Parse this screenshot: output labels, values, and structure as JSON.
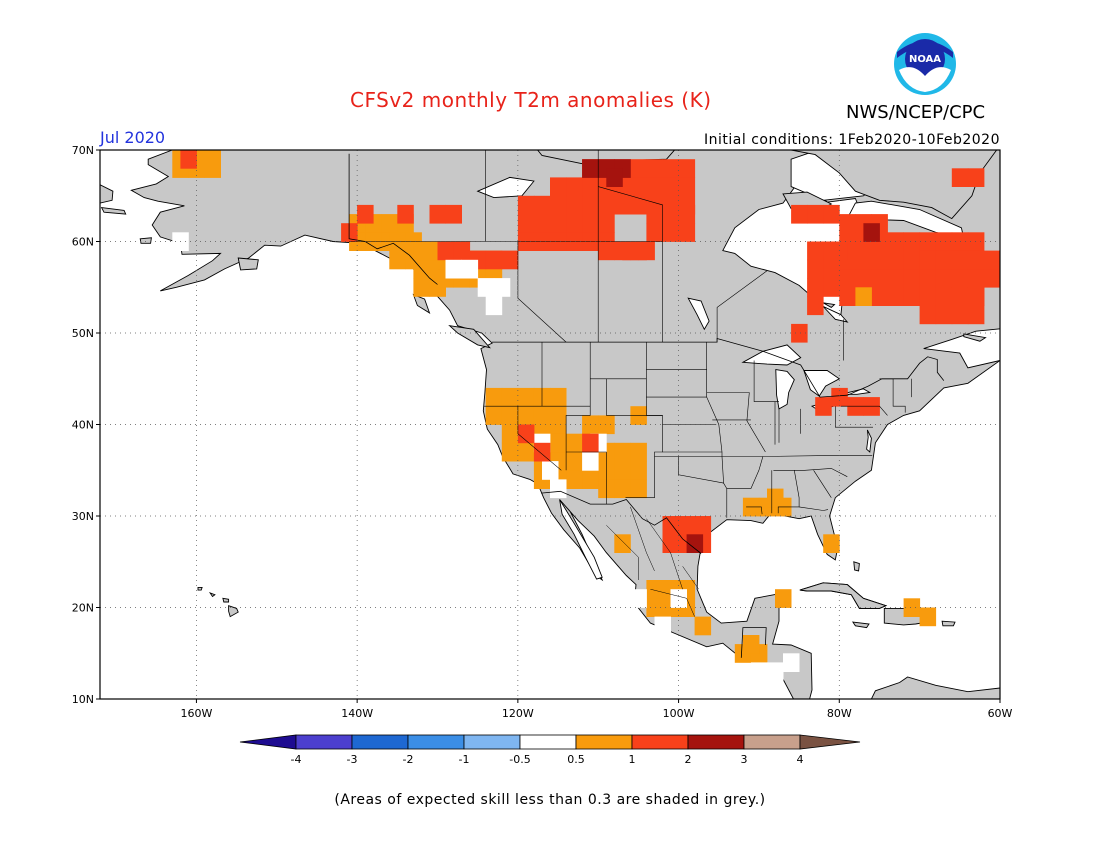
{
  "title": "CFSv2 monthly T2m anomalies (K)",
  "agency": "NWS/NCEP/CPC",
  "logo_text": "NOAA",
  "valid_period": "Jul 2020",
  "initial_conditions": "Initial conditions: 1Feb2020-10Feb2020",
  "footnote": "(Areas of expected skill less than 0.3 are shaded in grey.)",
  "map": {
    "lon_range": [
      -172,
      -60
    ],
    "lat_range": [
      10,
      70
    ],
    "lat_labels": [
      "10N",
      "20N",
      "30N",
      "40N",
      "50N",
      "60N",
      "70N"
    ],
    "lon_labels": [
      "160W",
      "140W",
      "120W",
      "100W",
      "80W",
      "60W"
    ],
    "land_color": "#c8c8c8"
  },
  "colorbar": {
    "tick_labels": [
      "-4",
      "-3",
      "-2",
      "-1",
      "-0.5",
      "0.5",
      "1",
      "2",
      "3",
      "4"
    ],
    "colors": [
      "#1e0c91",
      "#4c3fce",
      "#1e68d2",
      "#3b8ee6",
      "#7fb6f1",
      "#ffffff",
      "#f89b0d",
      "#f8411a",
      "#a5130e",
      "#c8a08c",
      "#7a5242"
    ]
  }
}
